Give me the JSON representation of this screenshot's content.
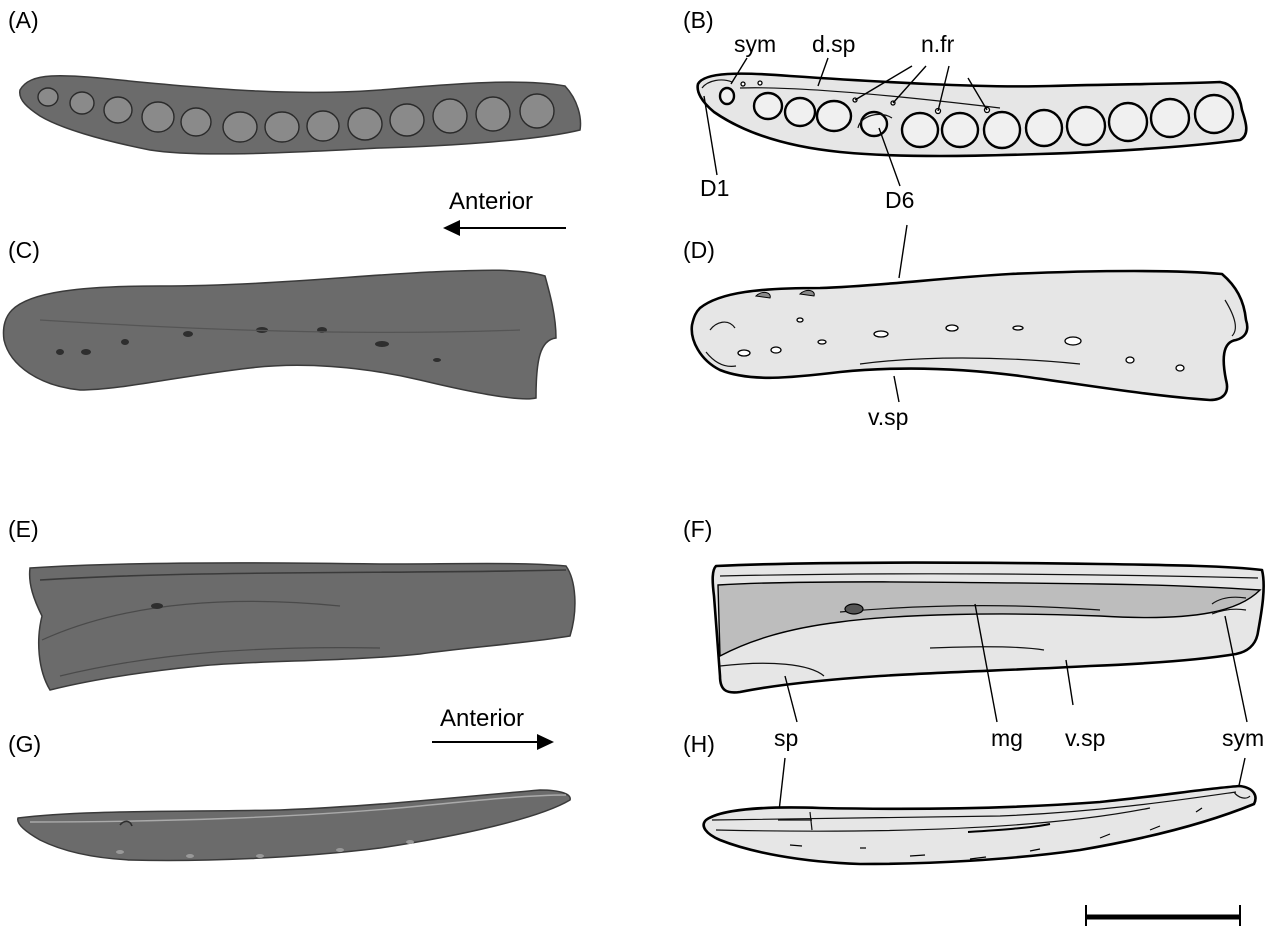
{
  "panels": [
    {
      "id": "A",
      "label": "(A)"
    },
    {
      "id": "B",
      "label": "(B)"
    },
    {
      "id": "C",
      "label": "(C)"
    },
    {
      "id": "D",
      "label": "(D)"
    },
    {
      "id": "E",
      "label": "(E)"
    },
    {
      "id": "F",
      "label": "(F)"
    },
    {
      "id": "G",
      "label": "(G)"
    },
    {
      "id": "H",
      "label": "(H)"
    }
  ],
  "annotations": {
    "B": [
      "sym",
      "d.sp",
      "n.fr",
      "D1",
      "D6"
    ],
    "D": [
      "v.sp"
    ],
    "F": [
      "sp",
      "mg",
      "v.sp",
      "sym"
    ]
  },
  "orientation": [
    {
      "label": "Anterior",
      "direction": "left"
    },
    {
      "label": "Anterior",
      "direction": "right"
    }
  ],
  "colors": {
    "render_fill": "#6b6b6b",
    "drawing_fill": "#e6e6e6",
    "medial_groove_fill": "#bdbdbd",
    "line": "#000000"
  }
}
